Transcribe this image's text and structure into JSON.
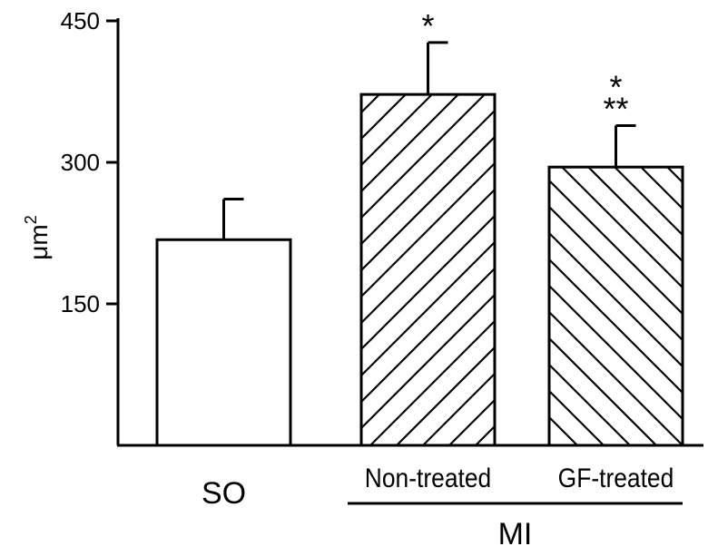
{
  "chart_data": {
    "type": "bar",
    "title": "",
    "xlabel": "",
    "ylabel": "μm",
    "ylabel_superscript": "2",
    "ylim": [
      0,
      450
    ],
    "yticks": [
      {
        "value": 150,
        "label": "150"
      },
      {
        "value": 300,
        "label": "300"
      },
      {
        "value": 450,
        "label": "450"
      }
    ],
    "categories": [
      "SO",
      "Non-treated",
      "GF-treated"
    ],
    "values": [
      218,
      372,
      295
    ],
    "errors": [
      43,
      55,
      44
    ],
    "bar_patterns": [
      "none",
      "hatch-forward",
      "hatch-back"
    ],
    "significance": [
      "",
      "*",
      "*"
    ],
    "significance2": [
      "",
      "",
      "**"
    ],
    "group_label": {
      "text": "MI",
      "categories": [
        1,
        2
      ]
    },
    "grid": false,
    "legend": "none"
  }
}
